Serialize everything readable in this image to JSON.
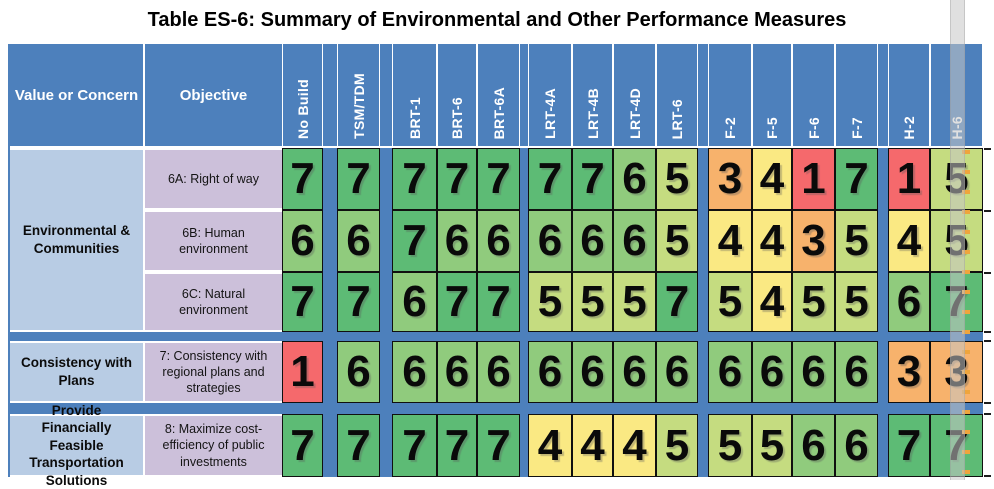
{
  "title": "Table ES-6: Summary of Environmental and Other Performance Measures",
  "chart_data": {
    "type": "heatmap",
    "title": "Table ES-6: Summary of Environmental and Other Performance Measures",
    "row_header_labels": [
      "Value or Concern",
      "Objective"
    ],
    "columns": [
      "No Build",
      "TSM/TDM",
      "BRT-1",
      "BRT-6",
      "BRT-6A",
      "LRT-4A",
      "LRT-4B",
      "LRT-4D",
      "LRT-6",
      "F-2",
      "F-5",
      "F-6",
      "F-7",
      "H-2",
      "H-6"
    ],
    "column_groups": [
      [
        "No Build"
      ],
      [
        "TSM/TDM"
      ],
      [
        "BRT-1",
        "BRT-6",
        "BRT-6A"
      ],
      [
        "LRT-4A",
        "LRT-4B",
        "LRT-4D",
        "LRT-6"
      ],
      [
        "F-2",
        "F-5",
        "F-6",
        "F-7"
      ],
      [
        "H-2",
        "H-6"
      ]
    ],
    "groups": [
      {
        "value_or_concern": "Environmental & Communities",
        "rows": [
          {
            "objective": "6A: Right of way",
            "scores": [
              7,
              7,
              7,
              7,
              7,
              7,
              7,
              6,
              5,
              3,
              4,
              1,
              7,
              1,
              5
            ]
          },
          {
            "objective": "6B: Human environment",
            "scores": [
              6,
              6,
              7,
              6,
              6,
              6,
              6,
              6,
              5,
              4,
              4,
              3,
              5,
              4,
              5
            ]
          },
          {
            "objective": "6C: Natural environment",
            "scores": [
              7,
              7,
              6,
              7,
              7,
              5,
              5,
              5,
              7,
              5,
              4,
              5,
              5,
              6,
              7
            ]
          }
        ]
      },
      {
        "value_or_concern": "Consistency with Plans",
        "rows": [
          {
            "objective": "7: Consistency with regional plans and strategies",
            "scores": [
              1,
              6,
              6,
              6,
              6,
              6,
              6,
              6,
              6,
              6,
              6,
              6,
              6,
              3,
              3
            ]
          }
        ]
      },
      {
        "value_or_concern": "Provide Financially Feasible Transportation Solutions",
        "rows": [
          {
            "objective": "8: Maximize cost-efficiency of public investments",
            "scores": [
              7,
              7,
              7,
              7,
              7,
              4,
              4,
              4,
              5,
              5,
              5,
              6,
              6,
              7,
              7
            ]
          }
        ]
      }
    ],
    "score_range": [
      1,
      7
    ],
    "score_colors": {
      "1": "#F5696C",
      "3": "#F7B26C",
      "4": "#FAE983",
      "5": "#C5DC80",
      "6": "#90CB7D",
      "7": "#5DBB75"
    },
    "colors": {
      "header_bg": "#4D80BC",
      "value_column_bg": "#B8CCE4",
      "objective_column_bg": "#CCC0DA",
      "header_text": "#FFFFFF",
      "cell_border": "#101010",
      "page_break_dash": "#EFA53C"
    }
  }
}
